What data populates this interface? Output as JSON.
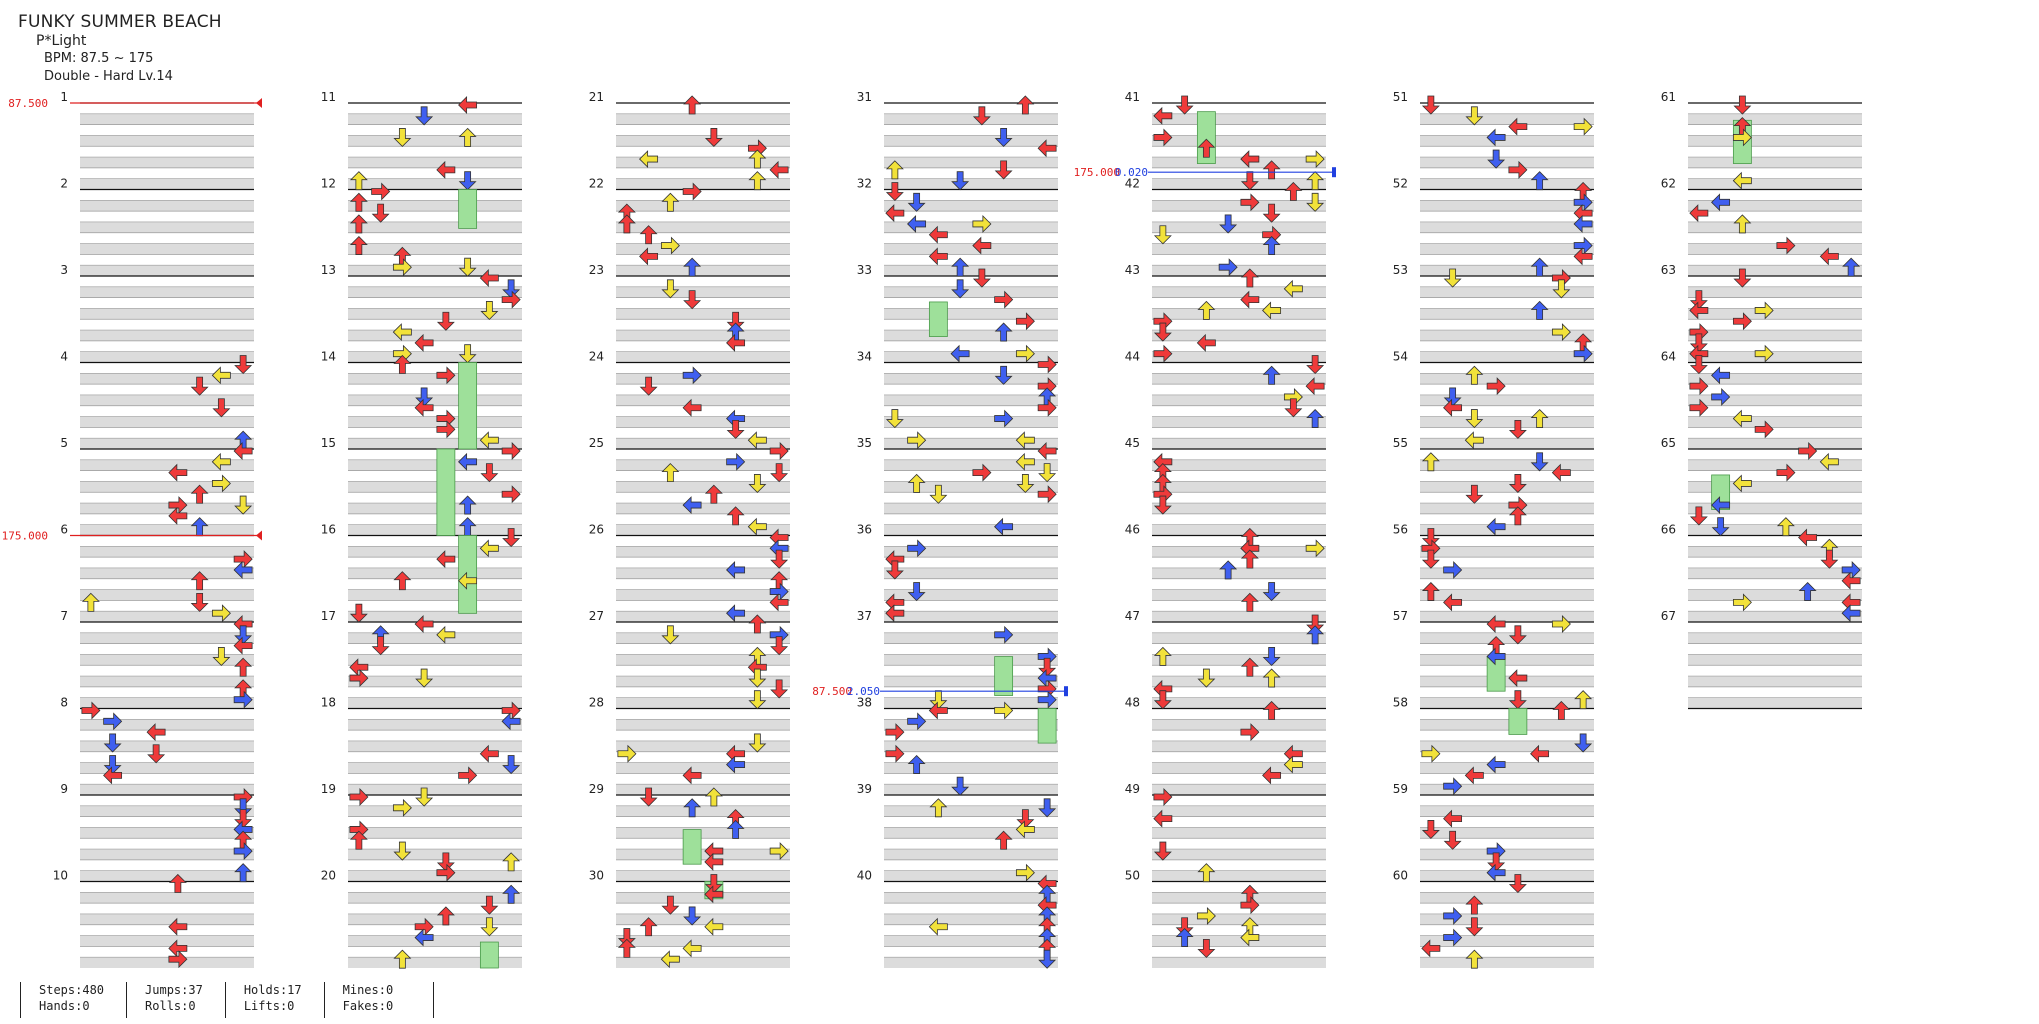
{
  "song": {
    "title": "FUNKY SUMMER BEACH",
    "artist": "P*Light",
    "bpm": "BPM: 87.5 ~ 175",
    "difficulty": "Double - Hard Lv.14"
  },
  "colors": {
    "red": "#ef3a3a",
    "blue": "#3f5ff0",
    "yellow": "#f2e23a",
    "orange": "#f0a030",
    "hold": "#9ee09a",
    "lane_gray": "#dcdcdc",
    "bpm_change": "#e02020",
    "stop": "#2040e0"
  },
  "measures": [
    "1",
    "2",
    "3",
    "4",
    "5",
    "6",
    "7",
    "8",
    "9",
    "10",
    "11",
    "12",
    "13",
    "14",
    "15",
    "16",
    "17",
    "18",
    "19",
    "20",
    "21",
    "22",
    "23",
    "24",
    "25",
    "26",
    "27",
    "28",
    "29",
    "30",
    "31",
    "32",
    "33",
    "34",
    "35",
    "36",
    "37",
    "38",
    "39",
    "40",
    "41",
    "42",
    "43",
    "44",
    "45",
    "46",
    "47",
    "48",
    "49",
    "50",
    "51",
    "52",
    "53",
    "54",
    "55",
    "56",
    "57",
    "58",
    "59",
    "60",
    "61",
    "62",
    "63",
    "64",
    "65",
    "66",
    "67"
  ],
  "bpm_changes": [
    {
      "measure": 1,
      "label": "87.500"
    },
    {
      "measure": 6,
      "label": "175.000"
    }
  ],
  "stops": [
    {
      "measure": 42,
      "bpm": "175.000",
      "stop": "0.020"
    },
    {
      "measure": 38,
      "bpm": "87.500",
      "stop": "2.050"
    }
  ],
  "stats": {
    "steps": "Steps:480",
    "hands": "Hands:0",
    "jumps": "Jumps:37",
    "rolls": "Rolls:0",
    "holds": "Holds:17",
    "lifts": "Lifts:0",
    "mines": "Mines:0",
    "fakes": "Fakes:0"
  }
}
